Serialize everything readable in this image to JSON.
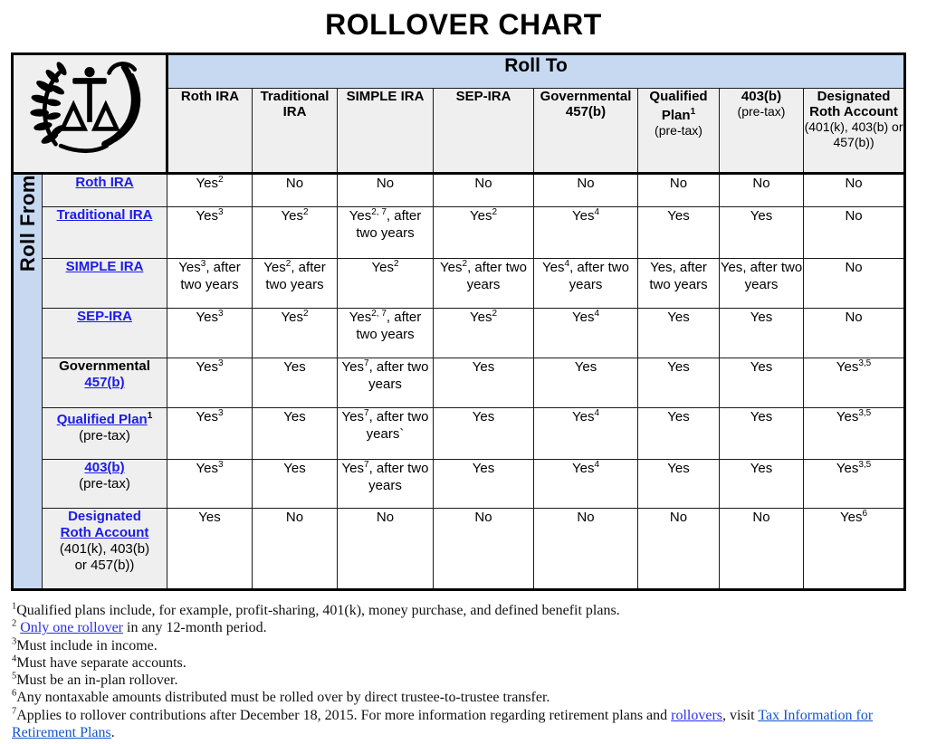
{
  "title": "ROLLOVER CHART",
  "logo": {
    "name": "irs-eagle-scales-logo"
  },
  "colors": {
    "band_blue": "#c6d9f1",
    "header_gray": "#efefef",
    "table_link_blue": "#1b1be8",
    "footnote_link_blue": "#2d2df0",
    "footnote_link_light_blue": "#1155cc",
    "border_black": "#000000"
  },
  "table": {
    "roll_to_label": "Roll To",
    "roll_from_label": "Roll From",
    "columns": [
      {
        "main": "Roth IRA",
        "sup": "",
        "sub": ""
      },
      {
        "main": "Traditional IRA",
        "sup": "",
        "sub": ""
      },
      {
        "main": "SIMPLE IRA",
        "sup": "",
        "sub": ""
      },
      {
        "main": "SEP-IRA",
        "sup": "",
        "sub": ""
      },
      {
        "main": "Governmental 457(b)",
        "sup": "",
        "sub": ""
      },
      {
        "main": "Qualified Plan",
        "sup": "1",
        "sub": "(pre-tax)"
      },
      {
        "main": "403(b)",
        "sup": "",
        "sub": "(pre-tax)"
      },
      {
        "main": "Designated Roth Account",
        "sup": "",
        "sub": "(401(k), 403(b) or 457(b))"
      }
    ],
    "rows": [
      {
        "key": "roth-ira",
        "label": [
          {
            "t": "Roth IRA",
            "s": "link"
          }
        ],
        "cells": [
          {
            "v": "Yes",
            "sup": "2"
          },
          {
            "v": "No"
          },
          {
            "v": "No"
          },
          {
            "v": "No"
          },
          {
            "v": "No"
          },
          {
            "v": "No"
          },
          {
            "v": "No"
          },
          {
            "v": "No"
          }
        ]
      },
      {
        "key": "traditional-ira",
        "label": [
          {
            "t": "Traditional IRA",
            "s": "link"
          }
        ],
        "cells": [
          {
            "v": "Yes",
            "sup": "3"
          },
          {
            "v": "Yes",
            "sup": "2"
          },
          {
            "v": "Yes",
            "sup": "2, 7",
            "after": ", after two years"
          },
          {
            "v": "Yes",
            "sup": "2"
          },
          {
            "v": "Yes",
            "sup": "4"
          },
          {
            "v": "Yes"
          },
          {
            "v": "Yes"
          },
          {
            "v": "No"
          }
        ]
      },
      {
        "key": "simple-ira",
        "label": [
          {
            "t": "SIMPLE IRA",
            "s": "link"
          }
        ],
        "cells": [
          {
            "v": "Yes",
            "sup": "3",
            "after": ", after two years"
          },
          {
            "v": "Yes",
            "sup": "2",
            "after": ", after two years"
          },
          {
            "v": "Yes",
            "sup": "2"
          },
          {
            "v": "Yes",
            "sup": "2",
            "after": ", after two years"
          },
          {
            "v": "Yes",
            "sup": "4",
            "after": ", after two years"
          },
          {
            "v": "Yes",
            "after": ", after two years"
          },
          {
            "v": "Yes",
            "after": ", after two years"
          },
          {
            "v": "No"
          }
        ]
      },
      {
        "key": "sep-ira",
        "label": [
          {
            "t": "SEP-IRA",
            "s": "link"
          }
        ],
        "cells": [
          {
            "v": "Yes",
            "sup": "3"
          },
          {
            "v": "Yes",
            "sup": "2"
          },
          {
            "v": "Yes",
            "sup": "2, 7",
            "after": ", after two years"
          },
          {
            "v": "Yes",
            "sup": "2"
          },
          {
            "v": "Yes",
            "sup": "4"
          },
          {
            "v": "Yes"
          },
          {
            "v": "Yes"
          },
          {
            "v": "No"
          }
        ]
      },
      {
        "key": "governmental-457b",
        "label": [
          {
            "t": "Governmental",
            "s": "bold"
          },
          {
            "t": "457(b)",
            "s": "link",
            "nl": true
          }
        ],
        "cells": [
          {
            "v": "Yes",
            "sup": "3"
          },
          {
            "v": "Yes"
          },
          {
            "v": "Yes",
            "sup": "7",
            "after": ", after two years"
          },
          {
            "v": "Yes"
          },
          {
            "v": "Yes"
          },
          {
            "v": "Yes"
          },
          {
            "v": "Yes"
          },
          {
            "v": "Yes",
            "sup": "3,5"
          }
        ]
      },
      {
        "key": "qualified-plan",
        "label": [
          {
            "t": "Qualified Plan",
            "s": "link"
          },
          {
            "t": "1",
            "s": "sup"
          },
          {
            "t": "(pre-tax)",
            "s": "plain",
            "nl": true
          }
        ],
        "cells": [
          {
            "v": "Yes",
            "sup": "3"
          },
          {
            "v": "Yes"
          },
          {
            "v": "Yes",
            "sup": "7",
            "after": ", after two years`"
          },
          {
            "v": "Yes"
          },
          {
            "v": "Yes",
            "sup": "4"
          },
          {
            "v": "Yes"
          },
          {
            "v": "Yes"
          },
          {
            "v": "Yes",
            "sup": "3,5"
          }
        ]
      },
      {
        "key": "403b",
        "label": [
          {
            "t": "403(b)",
            "s": "link"
          },
          {
            "t": "(pre-tax)",
            "s": "plain",
            "nl": true
          }
        ],
        "cells": [
          {
            "v": "Yes",
            "sup": "3"
          },
          {
            "v": "Yes"
          },
          {
            "v": "Yes",
            "sup": "7",
            "after": ", after two years"
          },
          {
            "v": "Yes"
          },
          {
            "v": "Yes",
            "sup": "4"
          },
          {
            "v": "Yes"
          },
          {
            "v": "Yes"
          },
          {
            "v": "Yes",
            "sup": "3,5"
          }
        ]
      },
      {
        "key": "designated-roth-account",
        "label": [
          {
            "t": "Designated",
            "s": "blue"
          },
          {
            "t": "Roth Account",
            "s": "link",
            "nl": true
          },
          {
            "t": "(401(k), 403(b)",
            "s": "plain",
            "nl": true
          },
          {
            "t": "or 457(b))",
            "s": "plain",
            "nl": true
          }
        ],
        "cells": [
          {
            "v": "Yes"
          },
          {
            "v": "No"
          },
          {
            "v": "No"
          },
          {
            "v": "No"
          },
          {
            "v": "No"
          },
          {
            "v": "No"
          },
          {
            "v": "No"
          },
          {
            "v": "Yes",
            "sup": "6"
          }
        ]
      }
    ]
  },
  "footnotes": [
    {
      "sup": "1",
      "segments": [
        {
          "t": "Qualified plans include, for example, profit-sharing, 401(k), money purchase, and defined benefit plans."
        }
      ]
    },
    {
      "sup": "2",
      "segments": [
        {
          "t": " "
        },
        {
          "t": "Only one rollover",
          "link": "blue"
        },
        {
          "t": " in any 12-month period."
        }
      ]
    },
    {
      "sup": "3",
      "segments": [
        {
          "t": "Must include in income."
        }
      ]
    },
    {
      "sup": "4",
      "segments": [
        {
          "t": "Must have separate accounts."
        }
      ]
    },
    {
      "sup": "5",
      "segments": [
        {
          "t": "Must be an in-plan rollover."
        }
      ]
    },
    {
      "sup": "6",
      "segments": [
        {
          "t": "Any nontaxable amounts distributed must be rolled over by direct trustee-to-trustee transfer."
        }
      ]
    },
    {
      "sup": "7",
      "segments": [
        {
          "t": "Applies to rollover contributions after December 18, 2015. For more information regarding retirement plans and "
        },
        {
          "t": "rollovers",
          "link": "blue"
        },
        {
          "t": ", visit "
        },
        {
          "t": "Tax Information for Retirement Plans",
          "link": "light"
        },
        {
          "t": "."
        }
      ]
    }
  ]
}
